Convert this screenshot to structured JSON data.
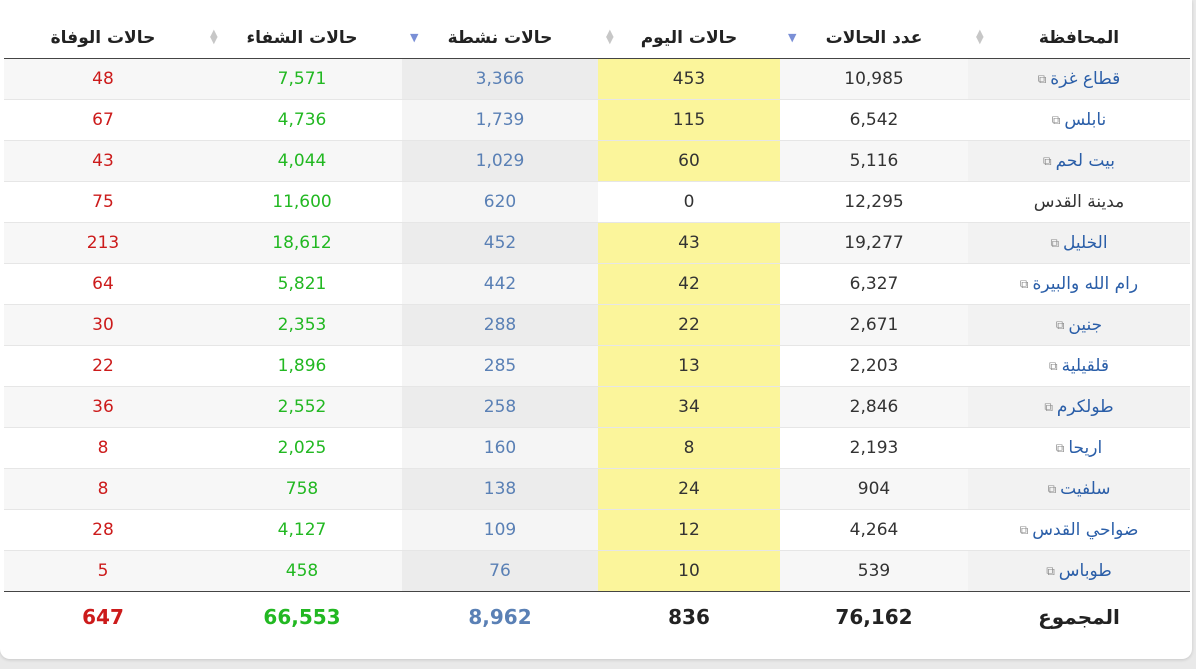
{
  "headers": {
    "governorate": "المحافظة",
    "total": "عدد الحالات",
    "today": "حالات اليوم",
    "active": "حالات نشطة",
    "recovered": "حالات الشفاء",
    "deaths": "حالات الوفاة"
  },
  "sort_state": {
    "governorate": "none",
    "total": "descending",
    "today": "none",
    "active": "descending",
    "recovered": "none",
    "deaths": "none"
  },
  "rows": [
    {
      "governorate": "قطاع غزة",
      "link": true,
      "total": "10,985",
      "today": "453",
      "active": "3,366",
      "recovered": "7,571",
      "deaths": "48"
    },
    {
      "governorate": "نابلس",
      "link": true,
      "total": "6,542",
      "today": "115",
      "active": "1,739",
      "recovered": "4,736",
      "deaths": "67"
    },
    {
      "governorate": "بيت لحم",
      "link": true,
      "total": "5,116",
      "today": "60",
      "active": "1,029",
      "recovered": "4,044",
      "deaths": "43"
    },
    {
      "governorate": "مدينة القدس",
      "link": false,
      "total": "12,295",
      "today": "0",
      "active": "620",
      "recovered": "11,600",
      "deaths": "75"
    },
    {
      "governorate": "الخليل",
      "link": true,
      "total": "19,277",
      "today": "43",
      "active": "452",
      "recovered": "18,612",
      "deaths": "213"
    },
    {
      "governorate": "رام الله والبيرة",
      "link": true,
      "total": "6,327",
      "today": "42",
      "active": "442",
      "recovered": "5,821",
      "deaths": "64"
    },
    {
      "governorate": "جنين",
      "link": true,
      "total": "2,671",
      "today": "22",
      "active": "288",
      "recovered": "2,353",
      "deaths": "30"
    },
    {
      "governorate": "قلقيلية",
      "link": true,
      "total": "2,203",
      "today": "13",
      "active": "285",
      "recovered": "1,896",
      "deaths": "22"
    },
    {
      "governorate": "طولكرم",
      "link": true,
      "total": "2,846",
      "today": "34",
      "active": "258",
      "recovered": "2,552",
      "deaths": "36"
    },
    {
      "governorate": "اريحا",
      "link": true,
      "total": "2,193",
      "today": "8",
      "active": "160",
      "recovered": "2,025",
      "deaths": "8"
    },
    {
      "governorate": "سلفيت",
      "link": true,
      "total": "904",
      "today": "24",
      "active": "138",
      "recovered": "758",
      "deaths": "8"
    },
    {
      "governorate": "ضواحي القدس",
      "link": true,
      "total": "4,264",
      "today": "12",
      "active": "109",
      "recovered": "4,127",
      "deaths": "28"
    },
    {
      "governorate": "طوباس",
      "link": true,
      "total": "539",
      "today": "10",
      "active": "76",
      "recovered": "458",
      "deaths": "5"
    }
  ],
  "totals": {
    "label": "المجموع",
    "total": "76,162",
    "today": "836",
    "active": "8,962",
    "recovered": "66,553",
    "deaths": "647"
  },
  "colors": {
    "link": "#2a5ea8",
    "today_highlight": "#fbf59b",
    "active": "#5a80b5",
    "recovered": "#22b822",
    "deaths": "#cc1b1b"
  },
  "icons": {
    "external_link": "external-link-icon",
    "sort_both": "sort-icon",
    "sort_desc": "sort-descending-icon"
  }
}
